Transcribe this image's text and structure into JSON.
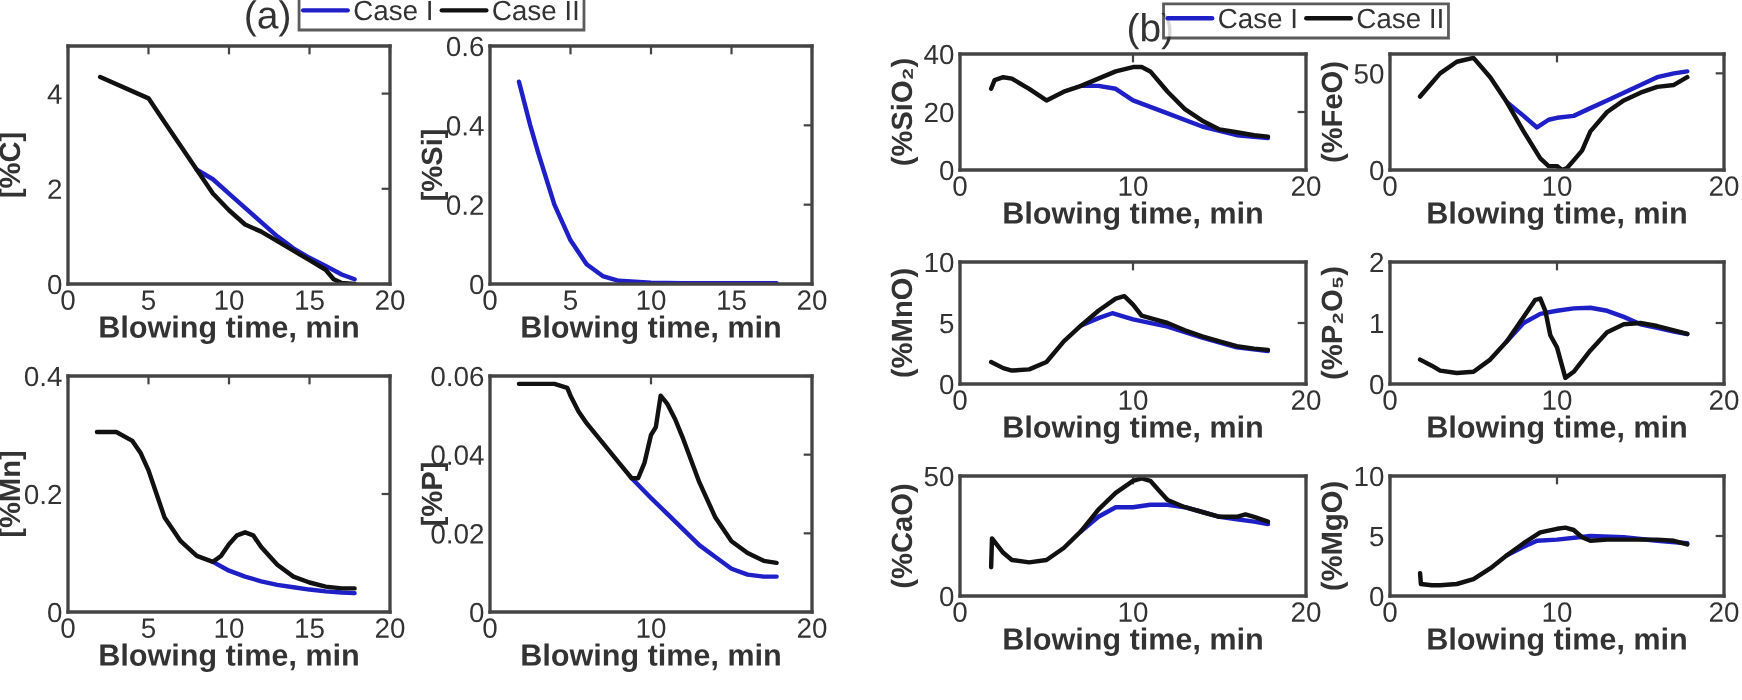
{
  "chart_data": [
    {
      "type": "line",
      "title": "(a)",
      "xlabel": "Blowing time, min",
      "ylabel": "[%C]",
      "xlim": [
        0,
        20
      ],
      "xticks": [
        0,
        5,
        10,
        15,
        20
      ],
      "ylim": [
        0,
        5
      ],
      "yticks": [
        0,
        2,
        4
      ],
      "legend": "top",
      "grid": false,
      "series": [
        {
          "name": "Case I",
          "color": "#1f1fc8",
          "x": [
            8,
            9,
            10,
            11,
            12,
            13,
            14,
            15,
            16,
            17,
            17.8
          ],
          "values": [
            2.4,
            2.2,
            1.9,
            1.6,
            1.3,
            1.0,
            0.75,
            0.55,
            0.38,
            0.2,
            0.1
          ]
        },
        {
          "name": "Case II",
          "color": "#111111",
          "x": [
            2,
            5,
            6,
            7,
            8,
            9,
            10,
            11,
            12,
            13,
            14,
            15,
            16,
            16.5,
            17,
            17.8
          ],
          "values": [
            4.35,
            3.9,
            3.4,
            2.9,
            2.4,
            1.9,
            1.55,
            1.25,
            1.1,
            0.9,
            0.7,
            0.5,
            0.3,
            0.1,
            0.02,
            0.0
          ]
        }
      ]
    },
    {
      "type": "line",
      "xlabel": "Blowing time, min",
      "ylabel": "[%Si]",
      "xlim": [
        0,
        20
      ],
      "xticks": [
        0,
        5,
        10,
        15,
        20
      ],
      "ylim": [
        0,
        0.6
      ],
      "yticks": [
        0,
        0.2,
        0.4,
        0.6
      ],
      "grid": false,
      "series": [
        {
          "color": "#1f1fc8",
          "x": [
            1.8,
            2.5,
            3,
            4,
            5,
            6,
            7,
            8,
            10,
            12,
            17.8
          ],
          "values": [
            0.51,
            0.4,
            0.33,
            0.2,
            0.11,
            0.05,
            0.02,
            0.008,
            0.003,
            0.002,
            0.002
          ]
        }
      ]
    },
    {
      "type": "line",
      "xlabel": "Blowing time, min",
      "ylabel": "[%Mn]",
      "xlim": [
        0,
        20
      ],
      "xticks": [
        0,
        5,
        10,
        15,
        20
      ],
      "ylim": [
        0,
        0.4
      ],
      "yticks": [
        0,
        0.2,
        0.4
      ],
      "grid": false,
      "series": [
        {
          "color": "#1f1fc8",
          "x": [
            9,
            10,
            11,
            12,
            13,
            14,
            15,
            16,
            17,
            17.8
          ],
          "values": [
            0.085,
            0.07,
            0.06,
            0.052,
            0.046,
            0.042,
            0.038,
            0.035,
            0.033,
            0.032
          ]
        },
        {
          "color": "#111111",
          "x": [
            1.8,
            3,
            4,
            4.5,
            5,
            5.5,
            6,
            7,
            8,
            9,
            9.5,
            10,
            10.5,
            11,
            11.5,
            12,
            13,
            14,
            15,
            16,
            17,
            17.8
          ],
          "values": [
            0.305,
            0.305,
            0.29,
            0.27,
            0.24,
            0.2,
            0.16,
            0.12,
            0.095,
            0.085,
            0.095,
            0.115,
            0.13,
            0.135,
            0.13,
            0.11,
            0.08,
            0.06,
            0.05,
            0.043,
            0.04,
            0.04
          ]
        }
      ]
    },
    {
      "type": "line",
      "xlabel": "Blowing time, min",
      "ylabel": "[%P]",
      "xlim": [
        0,
        20
      ],
      "xticks": [
        0,
        10,
        20
      ],
      "ylim": [
        0,
        0.06
      ],
      "yticks": [
        0,
        0.02,
        0.04,
        0.06
      ],
      "grid": false,
      "series": [
        {
          "color": "#1f1fc8",
          "x": [
            8.8,
            10,
            11,
            12,
            13,
            14,
            15,
            16,
            17,
            17.8
          ],
          "values": [
            0.034,
            0.029,
            0.025,
            0.021,
            0.017,
            0.014,
            0.011,
            0.0095,
            0.009,
            0.009
          ]
        },
        {
          "color": "#111111",
          "x": [
            1.8,
            4,
            4.8,
            5,
            5.5,
            6,
            7,
            8,
            8.8,
            9.2,
            9.6,
            10,
            10.3,
            10.6,
            11,
            11.5,
            12,
            13,
            14,
            15,
            16,
            17,
            17.8
          ],
          "values": [
            0.058,
            0.058,
            0.057,
            0.055,
            0.051,
            0.048,
            0.043,
            0.038,
            0.034,
            0.034,
            0.038,
            0.045,
            0.047,
            0.055,
            0.053,
            0.049,
            0.044,
            0.033,
            0.024,
            0.018,
            0.015,
            0.013,
            0.0125
          ]
        }
      ]
    },
    {
      "type": "line",
      "title": "(b)",
      "xlabel": "Blowing time, min",
      "ylabel": "(%SiO₂)",
      "xlim": [
        0,
        20
      ],
      "xticks": [
        0,
        10,
        20
      ],
      "ylim": [
        0,
        40
      ],
      "yticks": [
        0,
        20,
        40
      ],
      "legend": "top",
      "grid": false,
      "series": [
        {
          "name": "Case I",
          "color": "#1f1fc8",
          "x": [
            7,
            8,
            9,
            10,
            12,
            14,
            16,
            17.8
          ],
          "values": [
            29,
            29,
            28,
            24,
            19.5,
            15,
            12,
            11
          ]
        },
        {
          "name": "Case II",
          "color": "#111111",
          "x": [
            1.8,
            2,
            2.5,
            3,
            4,
            5,
            6,
            7,
            8,
            9,
            10,
            10.5,
            11,
            12,
            13,
            14,
            15,
            16,
            17,
            17.8
          ],
          "values": [
            28,
            31,
            32,
            31.5,
            28,
            24,
            27,
            29,
            31.5,
            34,
            35.5,
            35.5,
            34,
            27,
            21,
            17,
            14,
            13,
            12,
            11.5
          ]
        }
      ]
    },
    {
      "type": "line",
      "xlabel": "Blowing time, min",
      "ylabel": "(%FeO)",
      "xlim": [
        0,
        20
      ],
      "xticks": [
        0,
        10,
        20
      ],
      "ylim": [
        0,
        60
      ],
      "yticks": [
        0,
        50
      ],
      "grid": false,
      "series": [
        {
          "color": "#1f1fc8",
          "x": [
            7,
            8,
            8.8,
            9.5,
            10,
            11,
            12,
            13,
            14,
            15,
            16,
            17,
            17.8
          ],
          "values": [
            35,
            28,
            22,
            26,
            27,
            28,
            32,
            36,
            40,
            44,
            48,
            50,
            51
          ]
        },
        {
          "color": "#111111",
          "x": [
            1.8,
            2.5,
            3,
            4,
            5,
            6,
            7,
            8,
            9,
            9.5,
            10,
            10.3,
            10.6,
            11,
            11.5,
            12,
            13,
            14,
            15,
            16,
            17,
            17.8
          ],
          "values": [
            38,
            45,
            50,
            56,
            58,
            48,
            35,
            20,
            6,
            2,
            2,
            0,
            1,
            5,
            10,
            20,
            30,
            36,
            40,
            43,
            44,
            48
          ]
        }
      ]
    },
    {
      "type": "line",
      "xlabel": "Blowing time, min",
      "ylabel": "(%MnO)",
      "xlim": [
        0,
        20
      ],
      "xticks": [
        0,
        10,
        20
      ],
      "ylim": [
        0,
        10
      ],
      "yticks": [
        0,
        5,
        10
      ],
      "grid": false,
      "series": [
        {
          "color": "#1f1fc8",
          "x": [
            7,
            8,
            8.8,
            10,
            12,
            14,
            16,
            17.8
          ],
          "values": [
            4.8,
            5.4,
            5.8,
            5.3,
            4.7,
            3.8,
            3.0,
            2.7
          ]
        },
        {
          "color": "#111111",
          "x": [
            1.8,
            2.5,
            3,
            4,
            5,
            6,
            7,
            8,
            9,
            9.5,
            10,
            10.5,
            11,
            12,
            13,
            14,
            15,
            16,
            17,
            17.8
          ],
          "values": [
            1.8,
            1.3,
            1.1,
            1.2,
            1.8,
            3.5,
            4.8,
            6,
            7,
            7.2,
            6.5,
            5.6,
            5.4,
            5,
            4.4,
            3.9,
            3.5,
            3.1,
            2.9,
            2.8
          ]
        }
      ]
    },
    {
      "type": "line",
      "xlabel": "Blowing time, min",
      "ylabel": "(%P₂O₅)",
      "xlim": [
        0,
        20
      ],
      "xticks": [
        0,
        10,
        20
      ],
      "ylim": [
        0,
        2
      ],
      "yticks": [
        0,
        1,
        2
      ],
      "grid": false,
      "series": [
        {
          "color": "#1f1fc8",
          "x": [
            7,
            8,
            9,
            10,
            11,
            12,
            13,
            14,
            15,
            16,
            17,
            17.8
          ],
          "values": [
            0.7,
            1.0,
            1.15,
            1.2,
            1.24,
            1.25,
            1.2,
            1.1,
            0.98,
            0.92,
            0.86,
            0.82
          ]
        },
        {
          "color": "#111111",
          "x": [
            1.8,
            2.5,
            3,
            4,
            5,
            6,
            7,
            8,
            8.7,
            9,
            9.3,
            9.6,
            10,
            10.3,
            10.5,
            11,
            12,
            13,
            14,
            15,
            16,
            17,
            17.8
          ],
          "values": [
            0.4,
            0.3,
            0.22,
            0.18,
            0.2,
            0.4,
            0.7,
            1.1,
            1.38,
            1.4,
            1.2,
            0.8,
            0.6,
            0.3,
            0.1,
            0.2,
            0.55,
            0.85,
            0.98,
            1.0,
            0.95,
            0.88,
            0.82
          ]
        }
      ]
    },
    {
      "type": "line",
      "xlabel": "Blowing time, min",
      "ylabel": "(%CaO)",
      "xlim": [
        0,
        20
      ],
      "xticks": [
        0,
        10,
        20
      ],
      "ylim": [
        0,
        50
      ],
      "yticks": [
        0,
        50
      ],
      "grid": false,
      "series": [
        {
          "color": "#1f1fc8",
          "x": [
            7,
            8,
            9,
            10,
            11,
            12,
            13,
            14,
            15,
            16,
            17,
            17.8
          ],
          "values": [
            27,
            33,
            37,
            37,
            38,
            38,
            37,
            35,
            33,
            32,
            31,
            30
          ]
        },
        {
          "color": "#111111",
          "x": [
            1.8,
            1.85,
            2.5,
            3,
            4,
            5,
            6,
            7,
            8,
            9,
            10,
            10.5,
            11,
            11.5,
            12,
            13,
            14,
            15,
            16,
            16.5,
            17,
            17.8
          ],
          "values": [
            12,
            24,
            18,
            15,
            14,
            15,
            20,
            27,
            36,
            43,
            48,
            49,
            48,
            44,
            40,
            37,
            35,
            33,
            33,
            34,
            33,
            31
          ]
        }
      ]
    },
    {
      "type": "line",
      "xlabel": "Blowing time, min",
      "ylabel": "(%MgO)",
      "xlim": [
        0,
        20
      ],
      "xticks": [
        0,
        10,
        20
      ],
      "ylim": [
        0,
        10
      ],
      "yticks": [
        0,
        5,
        10
      ],
      "grid": false,
      "series": [
        {
          "color": "#1f1fc8",
          "x": [
            7,
            8,
            8.8,
            10,
            12,
            14,
            16,
            17.8
          ],
          "values": [
            3.4,
            4.1,
            4.6,
            4.7,
            5.0,
            4.9,
            4.6,
            4.4
          ]
        },
        {
          "color": "#111111",
          "x": [
            1.8,
            1.85,
            2.5,
            3,
            4,
            5,
            6,
            7,
            8,
            9,
            10,
            10.5,
            11,
            11.5,
            12,
            13,
            14,
            15,
            16,
            17,
            17.8
          ],
          "values": [
            1.9,
            1.0,
            0.9,
            0.9,
            1.0,
            1.4,
            2.3,
            3.4,
            4.4,
            5.3,
            5.6,
            5.7,
            5.5,
            4.9,
            4.6,
            4.7,
            4.7,
            4.7,
            4.7,
            4.6,
            4.3
          ]
        }
      ]
    }
  ]
}
